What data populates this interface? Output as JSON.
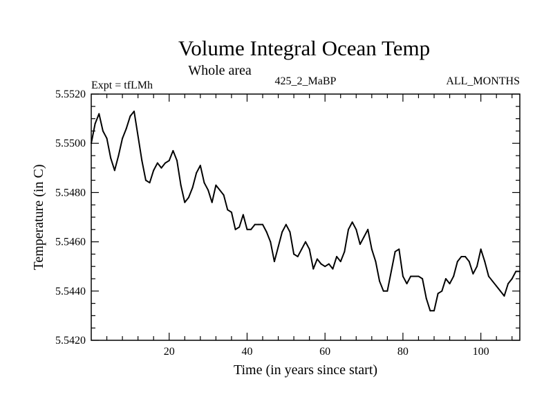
{
  "chart_data": {
    "type": "line",
    "title": "Volume Integral Ocean Temp",
    "subtitle": "Whole area",
    "left_label": "Expt = tfLMh",
    "center_label": "425_2_MaBP",
    "right_label": "ALL_MONTHS",
    "xlabel": "Time (in years since start)",
    "ylabel": "Temperature (in C)",
    "xlim": [
      0,
      110
    ],
    "ylim": [
      5.542,
      5.552
    ],
    "x_ticks": [
      20,
      40,
      60,
      80,
      100
    ],
    "x_tick_labels": [
      "20",
      "40",
      "60",
      "80",
      "100"
    ],
    "y_ticks": [
      5.542,
      5.544,
      5.546,
      5.548,
      5.55,
      5.552
    ],
    "y_tick_labels": [
      "5.5420",
      "5.5440",
      "5.5460",
      "5.5480",
      "5.5500",
      "5.5520"
    ],
    "x_minor_step": 4,
    "y_minor_step": 0.0005,
    "line_color": "#000000",
    "series": [
      {
        "name": "Volume Integral Ocean Temp",
        "x": [
          0,
          1,
          2,
          3,
          4,
          5,
          6,
          7,
          8,
          9,
          10,
          11,
          12,
          13,
          14,
          15,
          16,
          17,
          18,
          19,
          20,
          21,
          22,
          23,
          24,
          25,
          26,
          27,
          28,
          29,
          30,
          31,
          32,
          33,
          34,
          35,
          36,
          37,
          38,
          39,
          40,
          41,
          42,
          43,
          44,
          45,
          46,
          47,
          48,
          49,
          50,
          51,
          52,
          53,
          54,
          55,
          56,
          57,
          58,
          59,
          60,
          61,
          62,
          63,
          64,
          65,
          66,
          67,
          68,
          69,
          70,
          71,
          72,
          73,
          74,
          75,
          76,
          77,
          78,
          79,
          80,
          81,
          82,
          83,
          84,
          85,
          86,
          87,
          88,
          89,
          90,
          91,
          92,
          93,
          94,
          95,
          96,
          97,
          98,
          99,
          100,
          101,
          102,
          103,
          104,
          105,
          106,
          107,
          108,
          109,
          110
        ],
        "values": [
          5.55,
          5.5508,
          5.5512,
          5.5505,
          5.5502,
          5.5494,
          5.5489,
          5.5495,
          5.5502,
          5.5506,
          5.5511,
          5.5513,
          5.5503,
          5.5493,
          5.5485,
          5.5484,
          5.5489,
          5.5492,
          5.549,
          5.5492,
          5.5493,
          5.5497,
          5.5493,
          5.5483,
          5.5476,
          5.5478,
          5.5482,
          5.5488,
          5.5491,
          5.5484,
          5.5481,
          5.5476,
          5.5483,
          5.5481,
          5.5479,
          5.5473,
          5.5472,
          5.5465,
          5.5466,
          5.5471,
          5.5465,
          5.5465,
          5.5467,
          5.5467,
          5.5467,
          5.5464,
          5.546,
          5.5452,
          5.5458,
          5.5464,
          5.5467,
          5.5464,
          5.5455,
          5.5454,
          5.5457,
          5.546,
          5.5457,
          5.5449,
          5.5453,
          5.5451,
          5.545,
          5.5451,
          5.5449,
          5.5454,
          5.5452,
          5.5456,
          5.5465,
          5.5468,
          5.5465,
          5.5459,
          5.5462,
          5.5465,
          5.5457,
          5.5452,
          5.5444,
          5.544,
          5.544,
          5.5448,
          5.5456,
          5.5457,
          5.5446,
          5.5443,
          5.5446,
          5.5446,
          5.5446,
          5.5445,
          5.5437,
          5.5432,
          5.5432,
          5.5439,
          5.544,
          5.5445,
          5.5443,
          5.5446,
          5.5452,
          5.5454,
          5.5454,
          5.5452,
          5.5447,
          5.545,
          5.5457,
          5.5452,
          5.5446,
          5.5444,
          5.5442,
          5.544,
          5.5438,
          5.5443,
          5.5445,
          5.5448,
          5.5448
        ]
      }
    ]
  }
}
